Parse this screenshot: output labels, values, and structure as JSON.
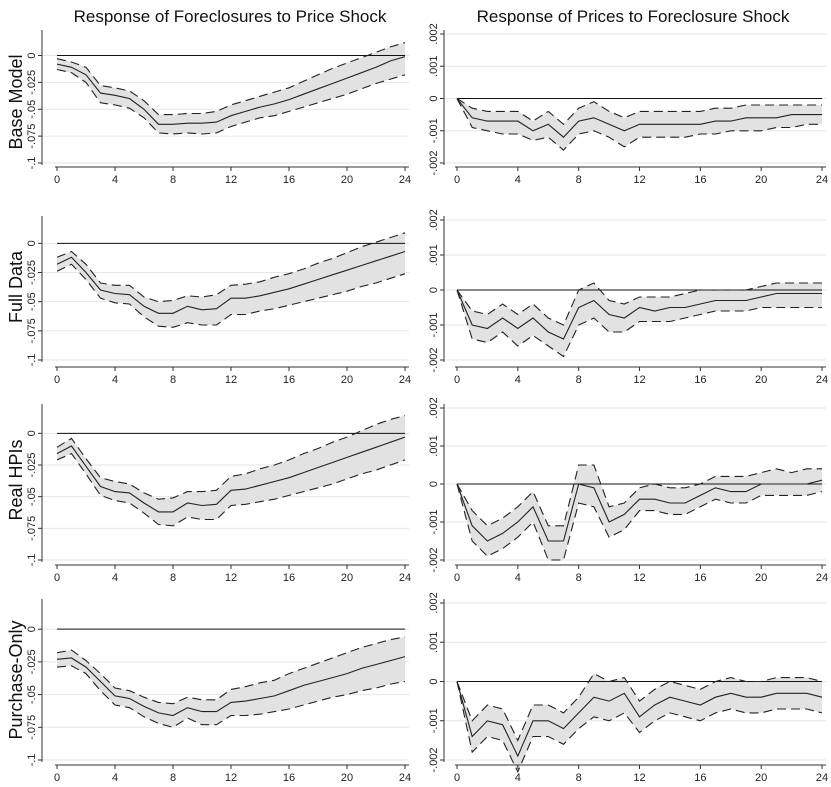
{
  "column_titles": [
    "Response of Foreclosures to Price Shock",
    "Response of Prices to Foreclosure Shock"
  ],
  "row_labels": [
    "Base Model",
    "Full Data",
    "Real HPIs",
    "Purchase-Only"
  ],
  "colors": {
    "band": "#e2e2e2",
    "line": "#222222",
    "axis": "#333333",
    "grid": "#e6e6e6"
  },
  "chart_data": [
    {
      "type": "line",
      "panel": "Base Model - foreclosures",
      "xticks": [
        "0",
        "4",
        "8",
        "12",
        "16",
        "20",
        "24"
      ],
      "x": [
        0,
        1,
        2,
        3,
        4,
        5,
        6,
        7,
        8,
        9,
        10,
        11,
        12,
        13,
        14,
        15,
        16,
        17,
        18,
        19,
        20,
        21,
        22,
        23,
        24
      ],
      "yticks": [
        "0",
        "-.025",
        "-.05",
        "-.075",
        "-.1"
      ],
      "yticklabels_joined": "-.1 -.075 -.05 -.025 0",
      "ylim": [
        -0.1,
        0.02
      ],
      "xlim": [
        0,
        24
      ],
      "series": [
        {
          "values": [
            -0.008,
            -0.011,
            -0.018,
            -0.035,
            -0.037,
            -0.04,
            -0.05,
            -0.064,
            -0.064,
            -0.063,
            -0.063,
            -0.062,
            -0.056,
            -0.052,
            -0.048,
            -0.045,
            -0.041,
            -0.036,
            -0.031,
            -0.026,
            -0.021,
            -0.016,
            -0.011,
            -0.005,
            -0.001
          ]
        },
        {
          "values": [
            -0.003,
            -0.006,
            -0.011,
            -0.028,
            -0.03,
            -0.033,
            -0.042,
            -0.055,
            -0.055,
            -0.054,
            -0.054,
            -0.052,
            -0.046,
            -0.042,
            -0.038,
            -0.034,
            -0.03,
            -0.024,
            -0.018,
            -0.012,
            -0.007,
            -0.002,
            0.003,
            0.008,
            0.012
          ]
        },
        {
          "values": [
            -0.013,
            -0.016,
            -0.025,
            -0.044,
            -0.046,
            -0.049,
            -0.058,
            -0.072,
            -0.073,
            -0.072,
            -0.073,
            -0.072,
            -0.066,
            -0.062,
            -0.058,
            -0.056,
            -0.052,
            -0.048,
            -0.044,
            -0.04,
            -0.036,
            -0.031,
            -0.026,
            -0.022,
            -0.018
          ]
        }
      ]
    },
    {
      "type": "line",
      "panel": "Base Model - prices",
      "xticks": [
        "0",
        "4",
        "8",
        "12",
        "16",
        "20",
        "24"
      ],
      "x": [
        0,
        1,
        2,
        3,
        4,
        5,
        6,
        7,
        8,
        9,
        10,
        11,
        12,
        13,
        14,
        15,
        16,
        17,
        18,
        19,
        20,
        21,
        22,
        23,
        24
      ],
      "yticks": [
        ".002",
        ".001",
        "0",
        "-.001",
        "-.002"
      ],
      "ylim": [
        -0.002,
        0.002
      ],
      "xlim": [
        0,
        24
      ],
      "series": [
        {
          "values": [
            0,
            -0.0006,
            -0.0007,
            -0.0007,
            -0.0007,
            -0.001,
            -0.0008,
            -0.0012,
            -0.0007,
            -0.0006,
            -0.0008,
            -0.001,
            -0.0008,
            -0.0008,
            -0.0008,
            -0.0008,
            -0.0008,
            -0.0007,
            -0.0007,
            -0.0006,
            -0.0006,
            -0.0006,
            -0.0005,
            -0.0005,
            -0.0005
          ]
        },
        {
          "values": [
            0,
            -0.0003,
            -0.0004,
            -0.0004,
            -0.0004,
            -0.0007,
            -0.0004,
            -0.0008,
            -0.0003,
            -0.0001,
            -0.0004,
            -0.0006,
            -0.0004,
            -0.0004,
            -0.0004,
            -0.0004,
            -0.0004,
            -0.0003,
            -0.0003,
            -0.0002,
            -0.0002,
            -0.0002,
            -0.0002,
            -0.0002,
            -0.0002
          ]
        },
        {
          "values": [
            0,
            -0.0009,
            -0.001,
            -0.0011,
            -0.0011,
            -0.0013,
            -0.0012,
            -0.0016,
            -0.0011,
            -0.001,
            -0.0012,
            -0.0015,
            -0.0012,
            -0.0012,
            -0.0012,
            -0.0012,
            -0.0011,
            -0.0011,
            -0.001,
            -0.001,
            -0.001,
            -0.0009,
            -0.0009,
            -0.0008,
            -0.0008
          ]
        }
      ]
    },
    {
      "type": "line",
      "panel": "Full Data - foreclosures",
      "xticks": [
        "0",
        "4",
        "8",
        "12",
        "16",
        "20",
        "24"
      ],
      "x": [
        0,
        1,
        2,
        3,
        4,
        5,
        6,
        7,
        8,
        9,
        10,
        11,
        12,
        13,
        14,
        15,
        16,
        17,
        18,
        19,
        20,
        21,
        22,
        23,
        24
      ],
      "yticks": [
        "0",
        "-.025",
        "-.05",
        "-.075",
        "-.1"
      ],
      "ylim": [
        -0.1,
        0.02
      ],
      "xlim": [
        0,
        24
      ],
      "series": [
        {
          "values": [
            -0.018,
            -0.012,
            -0.025,
            -0.04,
            -0.043,
            -0.044,
            -0.054,
            -0.06,
            -0.06,
            -0.054,
            -0.057,
            -0.056,
            -0.047,
            -0.047,
            -0.045,
            -0.042,
            -0.039,
            -0.035,
            -0.031,
            -0.027,
            -0.023,
            -0.019,
            -0.015,
            -0.011,
            -0.007
          ]
        },
        {
          "values": [
            -0.012,
            -0.007,
            -0.018,
            -0.034,
            -0.036,
            -0.036,
            -0.046,
            -0.05,
            -0.049,
            -0.045,
            -0.046,
            -0.044,
            -0.036,
            -0.035,
            -0.033,
            -0.029,
            -0.026,
            -0.022,
            -0.017,
            -0.013,
            -0.008,
            -0.003,
            0.001,
            0.005,
            0.009
          ]
        },
        {
          "values": [
            -0.024,
            -0.018,
            -0.031,
            -0.047,
            -0.051,
            -0.052,
            -0.063,
            -0.071,
            -0.072,
            -0.068,
            -0.07,
            -0.07,
            -0.061,
            -0.061,
            -0.058,
            -0.056,
            -0.053,
            -0.05,
            -0.047,
            -0.044,
            -0.041,
            -0.037,
            -0.034,
            -0.03,
            -0.026
          ]
        }
      ]
    },
    {
      "type": "line",
      "panel": "Full Data - prices",
      "xticks": [
        "0",
        "4",
        "8",
        "12",
        "16",
        "20",
        "24"
      ],
      "x": [
        0,
        1,
        2,
        3,
        4,
        5,
        6,
        7,
        8,
        9,
        10,
        11,
        12,
        13,
        14,
        15,
        16,
        17,
        18,
        19,
        20,
        21,
        22,
        23,
        24
      ],
      "yticks": [
        ".002",
        ".001",
        "0",
        "-.001",
        "-.002"
      ],
      "ylim": [
        -0.002,
        0.002
      ],
      "xlim": [
        0,
        24
      ],
      "series": [
        {
          "values": [
            0,
            -0.001,
            -0.0011,
            -0.0008,
            -0.0011,
            -0.0008,
            -0.0012,
            -0.0014,
            -0.0005,
            -0.0003,
            -0.0007,
            -0.0008,
            -0.0005,
            -0.0006,
            -0.0005,
            -0.0005,
            -0.0004,
            -0.0003,
            -0.0003,
            -0.0003,
            -0.0002,
            -0.0001,
            -0.0001,
            -0.0001,
            -0.0001
          ]
        },
        {
          "values": [
            0,
            -0.0006,
            -0.0007,
            -0.0004,
            -0.0007,
            -0.0004,
            -0.0008,
            -0.001,
            0.0,
            0.0002,
            -0.0003,
            -0.0004,
            -0.0002,
            -0.0002,
            -0.0002,
            -0.0001,
            0.0,
            0.0,
            0.0,
            0.0,
            0.0001,
            0.0002,
            0.0002,
            0.0002,
            0.0002
          ]
        },
        {
          "values": [
            0,
            -0.0014,
            -0.0015,
            -0.0012,
            -0.0016,
            -0.0013,
            -0.0016,
            -0.0019,
            -0.001,
            -0.0008,
            -0.0012,
            -0.0012,
            -0.0009,
            -0.0009,
            -0.0009,
            -0.0008,
            -0.0007,
            -0.0006,
            -0.0006,
            -0.0006,
            -0.0005,
            -0.0005,
            -0.0005,
            -0.0005,
            -0.0005
          ]
        }
      ]
    },
    {
      "type": "line",
      "panel": "Real HPIs - foreclosures",
      "xticks": [
        "0",
        "4",
        "8",
        "12",
        "16",
        "20",
        "24"
      ],
      "x": [
        0,
        1,
        2,
        3,
        4,
        5,
        6,
        7,
        8,
        9,
        10,
        11,
        12,
        13,
        14,
        15,
        16,
        17,
        18,
        19,
        20,
        21,
        22,
        23,
        24
      ],
      "yticks": [
        "0",
        "-.025",
        "-.05",
        "-.075",
        "-.1"
      ],
      "ylim": [
        -0.1,
        0.02
      ],
      "xlim": [
        0,
        24
      ],
      "series": [
        {
          "values": [
            -0.016,
            -0.01,
            -0.026,
            -0.042,
            -0.046,
            -0.047,
            -0.055,
            -0.062,
            -0.062,
            -0.055,
            -0.057,
            -0.056,
            -0.045,
            -0.044,
            -0.041,
            -0.038,
            -0.035,
            -0.031,
            -0.027,
            -0.023,
            -0.019,
            -0.015,
            -0.011,
            -0.007,
            -0.003
          ]
        },
        {
          "values": [
            -0.011,
            -0.004,
            -0.02,
            -0.035,
            -0.038,
            -0.04,
            -0.047,
            -0.052,
            -0.051,
            -0.046,
            -0.046,
            -0.045,
            -0.034,
            -0.032,
            -0.028,
            -0.025,
            -0.021,
            -0.016,
            -0.012,
            -0.007,
            -0.003,
            0.002,
            0.007,
            0.011,
            0.014
          ]
        },
        {
          "values": [
            -0.021,
            -0.016,
            -0.032,
            -0.049,
            -0.053,
            -0.055,
            -0.063,
            -0.072,
            -0.073,
            -0.066,
            -0.068,
            -0.068,
            -0.057,
            -0.056,
            -0.054,
            -0.052,
            -0.049,
            -0.046,
            -0.043,
            -0.04,
            -0.036,
            -0.032,
            -0.029,
            -0.025,
            -0.021
          ]
        }
      ]
    },
    {
      "type": "line",
      "panel": "Real HPIs - prices",
      "xticks": [
        "0",
        "4",
        "8",
        "12",
        "16",
        "20",
        "24"
      ],
      "x": [
        0,
        1,
        2,
        3,
        4,
        5,
        6,
        7,
        8,
        9,
        10,
        11,
        12,
        13,
        14,
        15,
        16,
        17,
        18,
        19,
        20,
        21,
        22,
        23,
        24
      ],
      "yticks": [
        ".002",
        ".001",
        "0",
        "-.001",
        "-.002"
      ],
      "ylim": [
        -0.002,
        0.002
      ],
      "xlim": [
        0,
        24
      ],
      "series": [
        {
          "values": [
            0,
            -0.0011,
            -0.0015,
            -0.0013,
            -0.001,
            -0.0006,
            -0.0015,
            -0.0015,
            0.0,
            -0.0001,
            -0.001,
            -0.0008,
            -0.0004,
            -0.0004,
            -0.0005,
            -0.0005,
            -0.0003,
            -0.0001,
            -0.0002,
            -0.0002,
            0.0,
            0.0,
            0.0,
            0.0,
            0.0001
          ]
        },
        {
          "values": [
            0,
            -0.0007,
            -0.0011,
            -0.0009,
            -0.0006,
            -0.0002,
            -0.0011,
            -0.0011,
            0.0005,
            0.0005,
            -0.0006,
            -0.0005,
            -0.0001,
            0.0,
            -0.0001,
            -0.0001,
            0.0,
            0.0002,
            0.0002,
            0.0002,
            0.0003,
            0.0004,
            0.0003,
            0.0004,
            0.0004
          ]
        },
        {
          "values": [
            0,
            -0.0015,
            -0.0019,
            -0.0017,
            -0.0014,
            -0.001,
            -0.002,
            -0.002,
            -0.0005,
            -0.0006,
            -0.0014,
            -0.0012,
            -0.0007,
            -0.0007,
            -0.0008,
            -0.0008,
            -0.0006,
            -0.0004,
            -0.0005,
            -0.0005,
            -0.0003,
            -0.0003,
            -0.0003,
            -0.0003,
            -0.0002
          ]
        }
      ]
    },
    {
      "type": "line",
      "panel": "Purchase-Only - foreclosures",
      "xticks": [
        "0",
        "4",
        "8",
        "12",
        "16",
        "20",
        "24"
      ],
      "x": [
        0,
        1,
        2,
        3,
        4,
        5,
        6,
        7,
        8,
        9,
        10,
        11,
        12,
        13,
        14,
        15,
        16,
        17,
        18,
        19,
        20,
        21,
        22,
        23,
        24
      ],
      "yticks": [
        "0",
        "-.025",
        "-.05",
        "-.075",
        "-.1"
      ],
      "ylim": [
        -0.1,
        0.02
      ],
      "xlim": [
        0,
        24
      ],
      "series": [
        {
          "values": [
            -0.023,
            -0.022,
            -0.029,
            -0.04,
            -0.051,
            -0.053,
            -0.059,
            -0.064,
            -0.066,
            -0.06,
            -0.063,
            -0.063,
            -0.056,
            -0.055,
            -0.053,
            -0.051,
            -0.047,
            -0.043,
            -0.04,
            -0.037,
            -0.034,
            -0.03,
            -0.027,
            -0.024,
            -0.021
          ]
        },
        {
          "values": [
            -0.018,
            -0.016,
            -0.024,
            -0.034,
            -0.045,
            -0.047,
            -0.052,
            -0.056,
            -0.057,
            -0.052,
            -0.054,
            -0.054,
            -0.046,
            -0.044,
            -0.041,
            -0.039,
            -0.034,
            -0.03,
            -0.026,
            -0.022,
            -0.018,
            -0.014,
            -0.011,
            -0.008,
            -0.006
          ]
        },
        {
          "values": [
            -0.029,
            -0.028,
            -0.034,
            -0.047,
            -0.058,
            -0.06,
            -0.067,
            -0.072,
            -0.075,
            -0.068,
            -0.073,
            -0.073,
            -0.066,
            -0.066,
            -0.065,
            -0.063,
            -0.061,
            -0.058,
            -0.055,
            -0.052,
            -0.05,
            -0.047,
            -0.045,
            -0.042,
            -0.04
          ]
        }
      ]
    },
    {
      "type": "line",
      "panel": "Purchase-Only - prices",
      "xticks": [
        "0",
        "4",
        "8",
        "12",
        "16",
        "20",
        "24"
      ],
      "x": [
        0,
        1,
        2,
        3,
        4,
        5,
        6,
        7,
        8,
        9,
        10,
        11,
        12,
        13,
        14,
        15,
        16,
        17,
        18,
        19,
        20,
        21,
        22,
        23,
        24
      ],
      "yticks": [
        ".002",
        ".001",
        "0",
        "-.001",
        "-.002"
      ],
      "ylim": [
        -0.002,
        0.002
      ],
      "xlim": [
        0,
        24
      ],
      "series": [
        {
          "values": [
            0,
            -0.0014,
            -0.001,
            -0.0011,
            -0.0019,
            -0.001,
            -0.001,
            -0.0012,
            -0.0008,
            -0.0004,
            -0.0005,
            -0.0003,
            -0.0009,
            -0.0006,
            -0.0004,
            -0.0005,
            -0.0006,
            -0.0004,
            -0.0003,
            -0.0004,
            -0.0004,
            -0.0003,
            -0.0003,
            -0.0003,
            -0.0004
          ]
        },
        {
          "values": [
            0,
            -0.001,
            -0.0006,
            -0.0007,
            -0.0015,
            -0.0006,
            -0.0006,
            -0.0008,
            -0.0004,
            0.0002,
            0.0,
            0.0001,
            -0.0005,
            -0.0002,
            0.0,
            -0.0001,
            -0.0002,
            0.0,
            0.0001,
            0.0,
            0.0,
            0.0001,
            0.0001,
            0.0001,
            0.0
          ]
        },
        {
          "values": [
            0,
            -0.0018,
            -0.0014,
            -0.0015,
            -0.0023,
            -0.0014,
            -0.0014,
            -0.0016,
            -0.0012,
            -0.0009,
            -0.001,
            -0.0008,
            -0.0013,
            -0.001,
            -0.0008,
            -0.0009,
            -0.001,
            -0.0008,
            -0.0007,
            -0.0008,
            -0.0008,
            -0.0007,
            -0.0007,
            -0.0007,
            -0.0008
          ]
        }
      ]
    }
  ]
}
